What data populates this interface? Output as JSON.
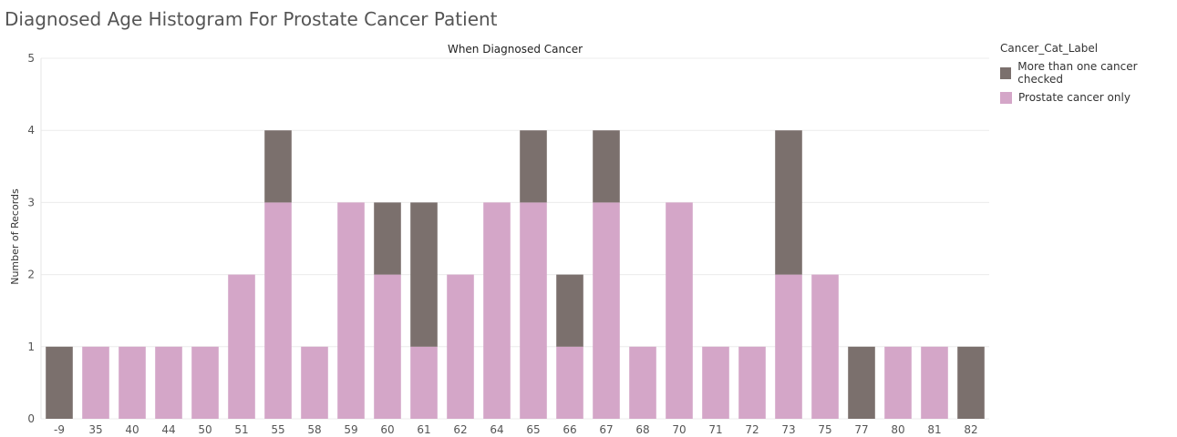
{
  "chart_data": {
    "type": "bar",
    "stacked": true,
    "title": "Diagnosed Age Histogram For Prostate Cancer Patient",
    "xlabel": "When Diagnosed Cancer",
    "ylabel": "Number of Records",
    "ylim": [
      0,
      5
    ],
    "yticks": [
      0,
      1,
      2,
      3,
      4,
      5
    ],
    "grid": true,
    "legend_title": "Cancer_Cat_Label",
    "legend_position": "top-right",
    "categories": [
      "-9",
      "35",
      "40",
      "44",
      "50",
      "51",
      "55",
      "58",
      "59",
      "60",
      "61",
      "62",
      "64",
      "65",
      "66",
      "67",
      "68",
      "70",
      "71",
      "72",
      "73",
      "75",
      "77",
      "80",
      "81",
      "82"
    ],
    "series": [
      {
        "name": "Prostate cancer only",
        "color": "#d4a6c8",
        "values": [
          0,
          1,
          1,
          1,
          1,
          2,
          3,
          1,
          3,
          2,
          1,
          2,
          3,
          3,
          1,
          3,
          1,
          3,
          1,
          1,
          2,
          2,
          0,
          1,
          1,
          0
        ]
      },
      {
        "name": "More than one cancer checked",
        "color": "#7b706d",
        "values": [
          1,
          0,
          0,
          0,
          0,
          0,
          1,
          0,
          0,
          1,
          2,
          0,
          0,
          1,
          1,
          1,
          0,
          0,
          0,
          0,
          2,
          0,
          1,
          0,
          0,
          1
        ]
      }
    ],
    "legend_order": [
      1,
      0
    ]
  }
}
